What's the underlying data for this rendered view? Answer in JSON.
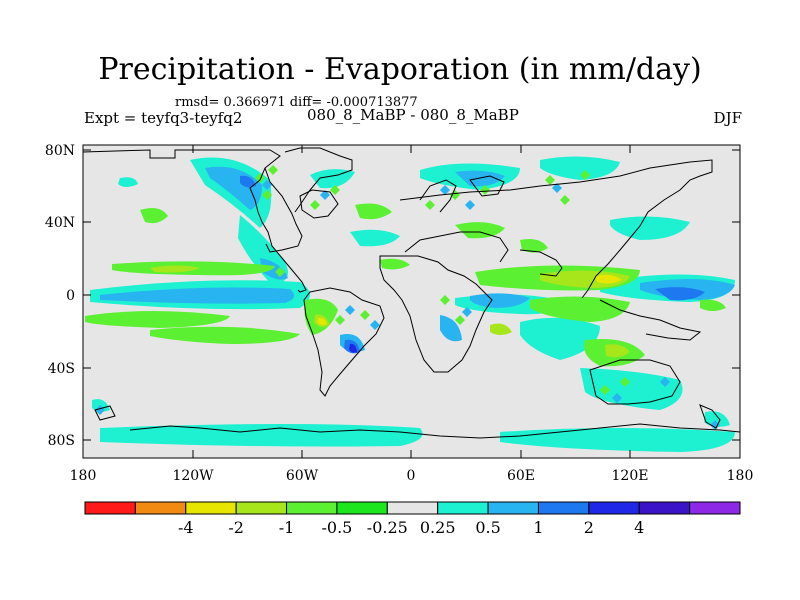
{
  "title": "Precipitation - Evaporation (in mm/day)",
  "stats": "rmsd= 0.366971 diff= -0.000713877",
  "experiment": "Expt = teyfq3-teyfq2",
  "run": "080_8_MaBP - 080_8_MaBP",
  "season": "DJF",
  "lat_labels": [
    "80N",
    "40N",
    "0",
    "40S",
    "80S"
  ],
  "lon_labels": [
    "180",
    "120W",
    "60W",
    "0",
    "60E",
    "120E",
    "180"
  ],
  "colorbar": {
    "labels": [
      "-4",
      "-2",
      "-1",
      "-0.5",
      "-0.25",
      "0.25",
      "0.5",
      "1",
      "2",
      "4"
    ],
    "colors": [
      "#ff1a1a",
      "#f08a10",
      "#e6e600",
      "#a6e61a",
      "#5cf032",
      "#1ee61e",
      "#e6e6e6",
      "#1ef0d2",
      "#28b4f0",
      "#1e78f0",
      "#1e28e6",
      "#3c14c8",
      "#8c28e6"
    ]
  },
  "map_background_color": "#e6e6e6"
}
